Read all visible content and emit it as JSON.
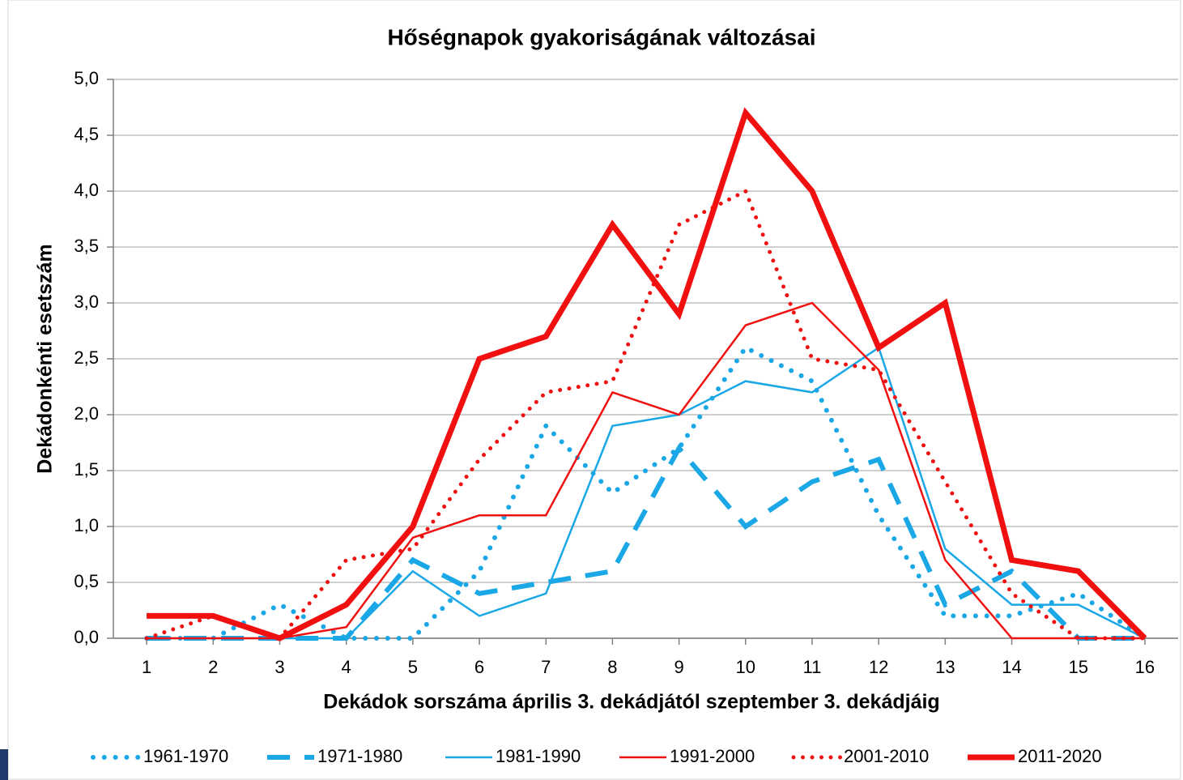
{
  "chart_data": {
    "type": "line",
    "title": "Hőségnapok gyakoriságának változásai",
    "xlabel": "Dekádok sorszáma április 3. dekádjától szeptember 3. dekádjáig",
    "ylabel": "Dekádonkénti esetszám",
    "x": [
      1,
      2,
      3,
      4,
      5,
      6,
      7,
      8,
      9,
      10,
      11,
      12,
      13,
      14,
      15,
      16
    ],
    "xlim": [
      0.5,
      16.5
    ],
    "xticks": [
      1,
      2,
      3,
      4,
      5,
      6,
      7,
      8,
      9,
      10,
      11,
      12,
      13,
      14,
      15,
      16
    ],
    "ylim": [
      0,
      5
    ],
    "yticks": [
      {
        "value": 0,
        "label": "0,0"
      },
      {
        "value": 0.5,
        "label": "0,5"
      },
      {
        "value": 1,
        "label": "1,0"
      },
      {
        "value": 1.5,
        "label": "1,5"
      },
      {
        "value": 2,
        "label": "2,0"
      },
      {
        "value": 2.5,
        "label": "2,5"
      },
      {
        "value": 3,
        "label": "3,0"
      },
      {
        "value": 3.5,
        "label": "3,5"
      },
      {
        "value": 4,
        "label": "4,0"
      },
      {
        "value": 4.5,
        "label": "4,5"
      },
      {
        "value": 5,
        "label": "5,0"
      }
    ],
    "grid": true,
    "legend": "bottom",
    "series": [
      {
        "name": "1961-1970",
        "color": "#1aa7e6",
        "style": "dotted",
        "width": 6,
        "values": [
          0,
          0,
          0.3,
          0,
          0,
          0.6,
          1.9,
          1.3,
          1.7,
          2.6,
          2.3,
          1.1,
          0.2,
          0.2,
          0.4,
          0
        ]
      },
      {
        "name": "1971-1980",
        "color": "#1aa7e6",
        "style": "dashed",
        "width": 6,
        "values": [
          0,
          0,
          0,
          0,
          0.7,
          0.4,
          0.5,
          0.6,
          1.7,
          1.0,
          1.4,
          1.6,
          0.3,
          0.6,
          0,
          0
        ]
      },
      {
        "name": "1981-1990",
        "color": "#1aa7e6",
        "style": "solid",
        "width": 2.5,
        "values": [
          0,
          0,
          0,
          0,
          0.6,
          0.2,
          0.4,
          1.9,
          2.0,
          2.3,
          2.2,
          2.6,
          0.8,
          0.3,
          0.3,
          0
        ]
      },
      {
        "name": "1991-2000",
        "color": "#f01010",
        "style": "solid",
        "width": 2.5,
        "values": [
          0,
          0,
          0,
          0.1,
          0.9,
          1.1,
          1.1,
          2.2,
          2.0,
          2.8,
          3.0,
          2.4,
          0.7,
          0,
          0,
          0
        ]
      },
      {
        "name": "2001-2010",
        "color": "#f01010",
        "style": "dotted",
        "width": 5,
        "values": [
          0,
          0.2,
          0,
          0.7,
          0.8,
          1.6,
          2.2,
          2.3,
          3.7,
          4.0,
          2.5,
          2.4,
          1.4,
          0.4,
          0,
          0
        ]
      },
      {
        "name": "2011-2020",
        "color": "#f01010",
        "style": "solid",
        "width": 7,
        "values": [
          0.2,
          0.2,
          0,
          0.3,
          1.0,
          2.5,
          2.7,
          3.7,
          2.9,
          4.7,
          4.0,
          2.6,
          3.0,
          0.7,
          0.6,
          0
        ]
      }
    ]
  }
}
